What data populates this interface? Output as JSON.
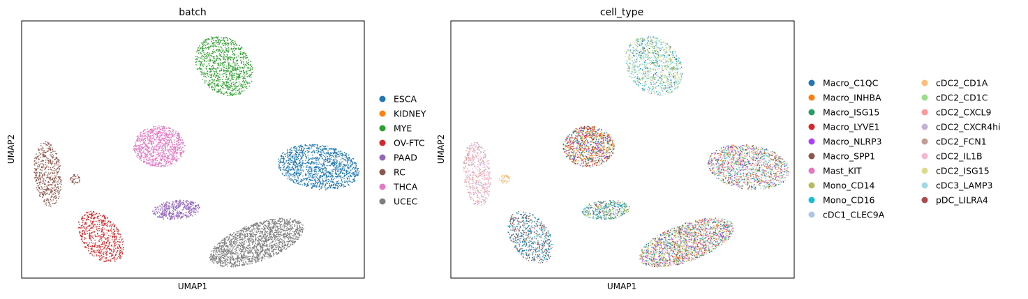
{
  "chart_data": [
    {
      "type": "scatter",
      "title": "batch",
      "xlabel": "UMAP1",
      "ylabel": "UMAP2",
      "xlim": [
        0,
        10
      ],
      "ylim": [
        0,
        7.5
      ],
      "xticks": "none",
      "yticks": "none",
      "grid": false,
      "legend": "right",
      "legend_columns": 1,
      "categories": [
        "ESCA",
        "KIDNEY",
        "MYE",
        "OV-FTC",
        "PAAD",
        "RC",
        "THCA",
        "UCEC"
      ],
      "colors": [
        "#1f77b4",
        "#ff7f0e",
        "#2ca02c",
        "#d62728",
        "#9467bd",
        "#8c564b",
        "#e377c2",
        "#7f7f7f"
      ],
      "clusters": [
        {
          "category": "MYE",
          "center": [
            5.9,
            6.2
          ],
          "radius": [
            0.75,
            0.95
          ],
          "angle_deg": 40,
          "points": 950
        },
        {
          "category": "THCA",
          "center": [
            4.0,
            3.85
          ],
          "radius": [
            0.75,
            0.6
          ],
          "angle_deg": 0,
          "points": 900
        },
        {
          "category": "RC",
          "center": [
            0.75,
            3.05
          ],
          "radius": [
            0.4,
            0.95
          ],
          "angle_deg": 5,
          "points": 500
        },
        {
          "category": "RC",
          "center": [
            1.55,
            2.9
          ],
          "radius": [
            0.15,
            0.14
          ],
          "angle_deg": 0,
          "points": 40
        },
        {
          "category": "ESCA",
          "center": [
            8.65,
            3.25
          ],
          "radius": [
            1.2,
            0.65
          ],
          "angle_deg": -8,
          "points": 1300
        },
        {
          "category": "PAAD",
          "center": [
            4.5,
            2.0
          ],
          "radius": [
            0.7,
            0.28
          ],
          "angle_deg": 5,
          "points": 420
        },
        {
          "category": "OV-FTC",
          "center": [
            2.3,
            1.2
          ],
          "radius": [
            0.55,
            0.85
          ],
          "angle_deg": 35,
          "points": 600
        },
        {
          "category": "UCEC",
          "center": [
            6.85,
            1.05
          ],
          "radius": [
            1.45,
            0.55
          ],
          "angle_deg": 20,
          "points": 1800
        }
      ]
    },
    {
      "type": "scatter",
      "title": "cell_type",
      "xlabel": "UMAP1",
      "ylabel": "UMAP2",
      "xlim": [
        0,
        10
      ],
      "ylim": [
        0,
        7.5
      ],
      "xticks": "none",
      "yticks": "none",
      "grid": false,
      "legend": "right",
      "legend_columns": 2,
      "categories": [
        "Macro_C1QC",
        "Macro_INHBA",
        "Macro_ISG15",
        "Macro_LYVE1",
        "Macro_NLRP3",
        "Macro_SPP1",
        "Mast_KIT",
        "Mono_CD14",
        "Mono_CD16",
        "cDC1_CLEC9A",
        "cDC2_CD1A",
        "cDC2_CD1C",
        "cDC2_CXCL9",
        "cDC2_CXCR4hi",
        "cDC2_FCN1",
        "cDC2_IL1B",
        "cDC2_ISG15",
        "cDC3_LAMP3",
        "pDC_LILRA4"
      ],
      "colors": [
        "#1f77b4",
        "#ff7f0e",
        "#279e68",
        "#d62728",
        "#aa40fc",
        "#8c564b",
        "#e377c2",
        "#b5bd61",
        "#17becf",
        "#aec7e8",
        "#ffbb78",
        "#98df8a",
        "#ff9896",
        "#c5b0d5",
        "#c49c94",
        "#f7b6d2",
        "#dbdb8d",
        "#9edae5",
        "#ad494a"
      ],
      "clusters": [
        {
          "center": [
            5.9,
            6.2
          ],
          "radius": [
            0.75,
            0.95
          ],
          "angle_deg": 40,
          "points": 950,
          "mix": [
            8,
            17,
            7,
            11,
            16,
            0,
            9
          ]
        },
        {
          "center": [
            4.0,
            3.85
          ],
          "radius": [
            0.75,
            0.6
          ],
          "angle_deg": 0,
          "points": 900,
          "mix": [
            1,
            3,
            4,
            0,
            2,
            7,
            1,
            3
          ]
        },
        {
          "center": [
            0.75,
            3.05
          ],
          "radius": [
            0.4,
            0.95
          ],
          "angle_deg": 5,
          "points": 500,
          "mix": [
            15,
            13,
            15,
            14,
            12
          ]
        },
        {
          "center": [
            1.55,
            2.9
          ],
          "radius": [
            0.15,
            0.14
          ],
          "angle_deg": 0,
          "points": 40,
          "mix": [
            10
          ]
        },
        {
          "center": [
            8.65,
            3.25
          ],
          "radius": [
            1.2,
            0.65
          ],
          "angle_deg": -8,
          "points": 1300,
          "mix": [
            3,
            0,
            4,
            2,
            7,
            8,
            5,
            1,
            6,
            17,
            11,
            13,
            12
          ]
        },
        {
          "center": [
            4.5,
            2.0
          ],
          "radius": [
            0.7,
            0.28
          ],
          "angle_deg": 5,
          "points": 420,
          "mix": [
            0,
            7,
            11,
            8,
            5,
            17
          ]
        },
        {
          "center": [
            2.3,
            1.2
          ],
          "radius": [
            0.55,
            0.85
          ],
          "angle_deg": 35,
          "points": 600,
          "mix": [
            0,
            5,
            0,
            8,
            5,
            14,
            0
          ]
        },
        {
          "center": [
            6.85,
            1.05
          ],
          "radius": [
            1.45,
            0.55
          ],
          "angle_deg": 20,
          "points": 1800,
          "mix": [
            7,
            4,
            2,
            0,
            6,
            3,
            5,
            11,
            1,
            16,
            13,
            8,
            15,
            7
          ]
        }
      ]
    }
  ]
}
